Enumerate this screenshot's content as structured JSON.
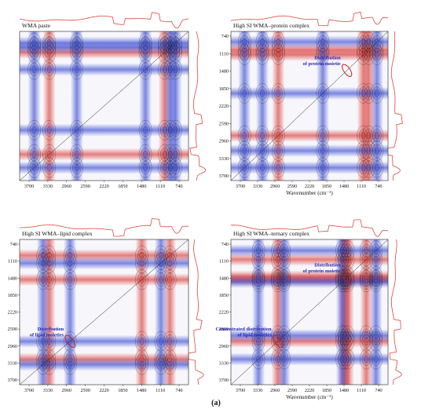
{
  "figure_label": "(a)",
  "colors": {
    "positive": "#d9302c",
    "negative": "#2d3fd0",
    "contour": "#1e1e1e",
    "annotation_text": "#2626b8",
    "ellipse": "#c81e1e",
    "spectrum": "#e0473f"
  },
  "chart_data": [
    {
      "type": "heatmap",
      "title": "WMA paste",
      "xlabel": "",
      "ylabel": "",
      "x_ticks": [
        "3700",
        "3330",
        "2960",
        "2590",
        "2220",
        "1850",
        "1480",
        "1110",
        "740"
      ],
      "y_ticks": [],
      "axis_range_cm1": [
        3900,
        650
      ],
      "positive_bands_cm1": [
        1110,
        3330
      ],
      "negative_bands_cm1": [
        3620,
        1480,
        1000,
        900,
        2800
      ],
      "annotations": []
    },
    {
      "type": "heatmap",
      "title": "High SI WMA–protein complex",
      "xlabel": "Wavenumber (cm⁻¹)",
      "ylabel": "",
      "x_ticks": [
        "3700",
        "3330",
        "2960",
        "2590",
        "2220",
        "1850",
        "1480",
        "1110",
        "740"
      ],
      "y_ticks": [
        "740",
        "1110",
        "1480",
        "1850",
        "2220",
        "2590",
        "2960",
        "3330",
        "3700"
      ],
      "axis_range_cm1": [
        3900,
        650
      ],
      "positive_bands_cm1": [
        1050,
        1160,
        2920
      ],
      "negative_bands_cm1": [
        3620,
        3250,
        880,
        2000
      ],
      "annotations": [
        {
          "text": "Distribution\nof protein moietie",
          "wavenumber": 1500
        }
      ]
    },
    {
      "type": "heatmap",
      "title": "High SI WMA–lipid complex",
      "xlabel": "",
      "ylabel": "",
      "x_ticks": [
        "3700",
        "3330",
        "2960",
        "2590",
        "2220",
        "1850",
        "1480",
        "1110",
        "740"
      ],
      "y_ticks": [
        "740",
        "1110",
        "1480",
        "1850",
        "2220",
        "2590",
        "2960",
        "3330",
        "3700"
      ],
      "axis_range_cm1": [
        3900,
        650
      ],
      "positive_bands_cm1": [
        3330,
        1550,
        1010
      ],
      "negative_bands_cm1": [
        1180,
        3450,
        2930
      ],
      "annotations": [
        {
          "text": "Distribution\nof lipid moieties",
          "wavenumber": 2930
        }
      ]
    },
    {
      "type": "heatmap",
      "title": "High SI WMA–ternary complex",
      "xlabel": "Wavenumber (cm⁻¹)",
      "ylabel": "",
      "x_ticks": [
        "3700",
        "3330",
        "2960",
        "2590",
        "2220",
        "1850",
        "1480",
        "1110",
        "740"
      ],
      "y_ticks": [
        "740",
        "1110",
        "1480",
        "1850",
        "2220",
        "2590",
        "2960",
        "3330",
        "3700"
      ],
      "axis_range_cm1": [
        3900,
        650
      ],
      "positive_bands_cm1": [
        1100,
        1550,
        1480,
        2930
      ],
      "negative_bands_cm1": [
        1600,
        3330,
        900,
        2800
      ],
      "annotations": [
        {
          "text": "Distribution\nof protein moietie",
          "wavenumber": 1500
        },
        {
          "text": "Concentrated distribution\nof lipid moieties",
          "wavenumber": 2930
        }
      ]
    }
  ]
}
